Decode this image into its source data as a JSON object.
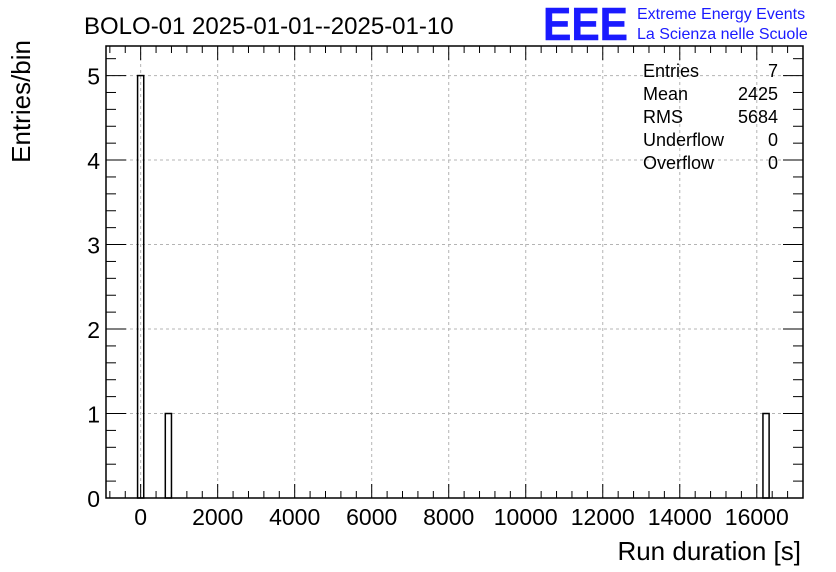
{
  "chart_data": {
    "type": "bar",
    "title": "BOLO-01 2025-01-01--2025-01-10",
    "xlabel": "Run duration [s]",
    "ylabel": "Entries/bin",
    "xlim": [
      -900,
      17200
    ],
    "ylim": [
      0,
      5.35
    ],
    "x_ticks": [
      0,
      2000,
      4000,
      6000,
      8000,
      10000,
      12000,
      14000,
      16000
    ],
    "y_ticks": [
      0,
      1,
      2,
      3,
      4,
      5
    ],
    "grid": true,
    "bin_width": 160,
    "bins": [
      {
        "x_low": -80,
        "x_high": 80,
        "count": 5
      },
      {
        "x_low": 640,
        "x_high": 800,
        "count": 1
      },
      {
        "x_low": 16160,
        "x_high": 16320,
        "count": 1
      }
    ],
    "stats": [
      {
        "label": "Entries",
        "value": "7"
      },
      {
        "label": "Mean",
        "value": "2425"
      },
      {
        "label": "RMS",
        "value": "5684"
      },
      {
        "label": "Underflow",
        "value": "0"
      },
      {
        "label": "Overflow",
        "value": "0"
      }
    ]
  },
  "logo": {
    "mark": "EEE",
    "line1": "Extreme Energy Events",
    "line2": "La Scienza nelle Scuole",
    "color": "#1a1aff"
  }
}
